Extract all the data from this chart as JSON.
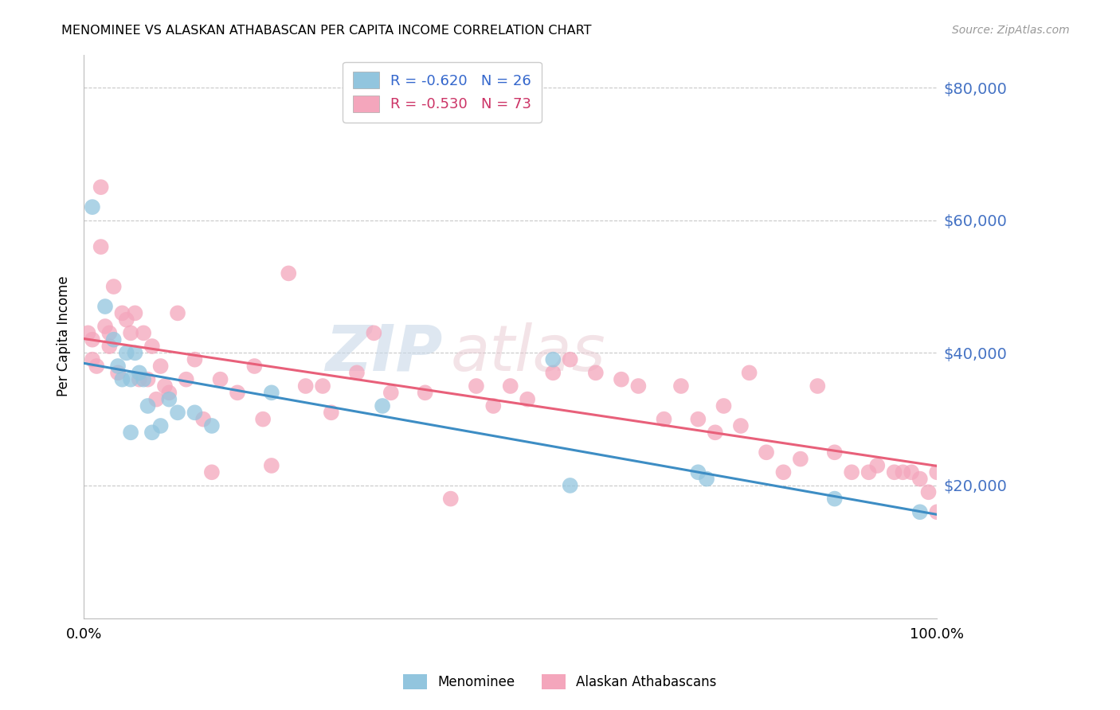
{
  "title": "MENOMINEE VS ALASKAN ATHABASCAN PER CAPITA INCOME CORRELATION CHART",
  "source": "Source: ZipAtlas.com",
  "ylabel": "Per Capita Income",
  "xlim": [
    0.0,
    1.0
  ],
  "ylim": [
    0,
    85000
  ],
  "ytick_values": [
    20000,
    40000,
    60000,
    80000
  ],
  "ytick_labels": [
    "$20,000",
    "$40,000",
    "$60,000",
    "$80,000"
  ],
  "legend_label1": "Menominee",
  "legend_label2": "Alaskan Athabascans",
  "blue_color": "#92c5de",
  "pink_color": "#f4a6bc",
  "blue_line_color": "#3d8dc4",
  "pink_line_color": "#e8607a",
  "ytick_color": "#4472c4",
  "watermark_zip": "ZIP",
  "watermark_atlas": "atlas",
  "menominee_x": [
    0.01,
    0.025,
    0.035,
    0.04,
    0.045,
    0.05,
    0.055,
    0.055,
    0.06,
    0.065,
    0.07,
    0.075,
    0.08,
    0.09,
    0.1,
    0.11,
    0.13,
    0.15,
    0.22,
    0.35,
    0.55,
    0.57,
    0.72,
    0.73,
    0.88,
    0.98
  ],
  "menominee_y": [
    62000,
    47000,
    42000,
    38000,
    36000,
    40000,
    36000,
    28000,
    40000,
    37000,
    36000,
    32000,
    28000,
    29000,
    33000,
    31000,
    31000,
    29000,
    34000,
    32000,
    39000,
    20000,
    22000,
    21000,
    18000,
    16000
  ],
  "athabascan_x": [
    0.005,
    0.01,
    0.01,
    0.015,
    0.02,
    0.02,
    0.025,
    0.03,
    0.03,
    0.035,
    0.04,
    0.045,
    0.05,
    0.055,
    0.06,
    0.065,
    0.07,
    0.075,
    0.08,
    0.085,
    0.09,
    0.095,
    0.1,
    0.11,
    0.12,
    0.13,
    0.14,
    0.15,
    0.16,
    0.18,
    0.2,
    0.21,
    0.22,
    0.24,
    0.26,
    0.28,
    0.29,
    0.32,
    0.34,
    0.36,
    0.4,
    0.43,
    0.46,
    0.48,
    0.5,
    0.52,
    0.55,
    0.57,
    0.6,
    0.63,
    0.65,
    0.68,
    0.7,
    0.72,
    0.74,
    0.75,
    0.77,
    0.78,
    0.8,
    0.82,
    0.84,
    0.86,
    0.88,
    0.9,
    0.92,
    0.93,
    0.95,
    0.96,
    0.97,
    0.98,
    0.99,
    1.0,
    1.0
  ],
  "athabascan_y": [
    43000,
    42000,
    39000,
    38000,
    65000,
    56000,
    44000,
    43000,
    41000,
    50000,
    37000,
    46000,
    45000,
    43000,
    46000,
    36000,
    43000,
    36000,
    41000,
    33000,
    38000,
    35000,
    34000,
    46000,
    36000,
    39000,
    30000,
    22000,
    36000,
    34000,
    38000,
    30000,
    23000,
    52000,
    35000,
    35000,
    31000,
    37000,
    43000,
    34000,
    34000,
    18000,
    35000,
    32000,
    35000,
    33000,
    37000,
    39000,
    37000,
    36000,
    35000,
    30000,
    35000,
    30000,
    28000,
    32000,
    29000,
    37000,
    25000,
    22000,
    24000,
    35000,
    25000,
    22000,
    22000,
    23000,
    22000,
    22000,
    22000,
    21000,
    19000,
    16000,
    22000
  ]
}
